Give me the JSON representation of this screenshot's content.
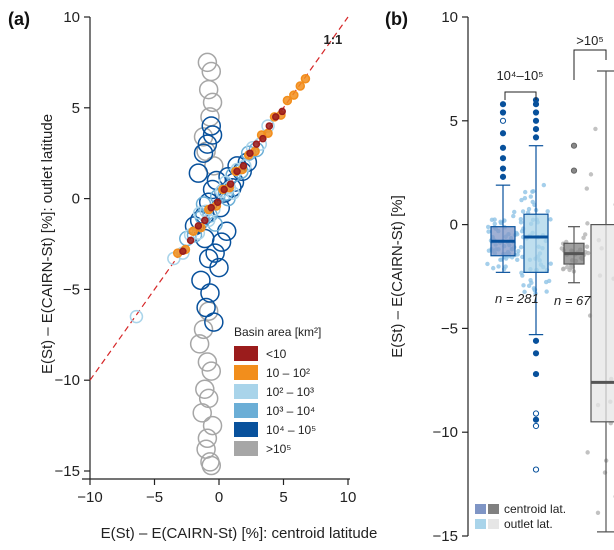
{
  "chart_data": [
    {
      "panel_label": "(a)",
      "type": "scatter",
      "xlabel": "E(St) – E(CAIRN-St) [%]: centroid latitude",
      "ylabel": "E(St) – E(CAIRN-St) [%]: outlet latitude",
      "xlim": [
        -10,
        10
      ],
      "ylim": [
        -15,
        10
      ],
      "x_ticks": [
        -10,
        -5,
        0,
        5,
        10
      ],
      "y_ticks": [
        -15,
        -10,
        -5,
        0,
        5,
        10
      ],
      "x_tick_labels": [
        "−10",
        "−5",
        "0",
        "5",
        "10"
      ],
      "y_tick_labels": [
        "−15",
        "−10",
        "−5",
        "0",
        "5",
        "10"
      ],
      "reference_line": {
        "label": "1:1",
        "slope": 1,
        "intercept": 0,
        "color": "#d62728"
      },
      "legend": {
        "title": "Basin area [km²]",
        "placement": "lower-right",
        "entries": [
          {
            "label": "<10",
            "color": "#9b1c1c"
          },
          {
            "label": "10 – 10²",
            "color": "#f28e1c"
          },
          {
            "label": "10² – 10³",
            "color": "#a9d4ea"
          },
          {
            "label": "10³ – 10⁴",
            "color": "#6baed6"
          },
          {
            "label": "10⁴ – 10⁵",
            "color": "#08519c"
          },
          {
            "label": ">10⁵",
            "color": "#a6a6a6"
          }
        ]
      },
      "series": [
        {
          "name": "<10",
          "color": "#9b1c1c",
          "x": [
            -2.8,
            -2.2,
            -1.6,
            -1.1,
            -0.6,
            -0.1,
            0.4,
            0.9,
            1.4,
            1.9,
            2.4,
            2.9,
            3.4,
            3.9,
            4.4,
            4.9
          ],
          "y": [
            -2.9,
            -2.3,
            -1.5,
            -1.2,
            -0.5,
            -0.2,
            0.5,
            0.8,
            1.5,
            1.8,
            2.5,
            3.0,
            3.3,
            4.0,
            4.5,
            4.8
          ]
        },
        {
          "name": "10 – 10²",
          "color": "#f28e1c",
          "x": [
            -3.2,
            -2.6,
            -2.0,
            -1.4,
            -0.8,
            -0.2,
            0.3,
            0.8,
            1.3,
            1.8,
            2.3,
            2.8,
            3.3,
            3.8,
            4.3,
            4.8,
            5.3,
            5.8,
            6.3,
            6.7
          ],
          "y": [
            -3.0,
            -2.8,
            -1.8,
            -1.6,
            -0.6,
            -0.4,
            0.5,
            0.6,
            1.5,
            1.6,
            2.4,
            2.6,
            3.5,
            3.6,
            4.5,
            4.6,
            5.4,
            5.7,
            6.2,
            6.6
          ]
        },
        {
          "name": "10² – 10³",
          "color": "#a9d4ea",
          "x": [
            -6.4,
            -3.5,
            -2.8,
            -2.2,
            -1.6,
            -1.0,
            -0.4,
            0.2,
            0.8,
            1.4,
            2.0,
            2.6,
            3.2,
            3.8,
            -1.5,
            -0.8,
            0.5,
            1.1
          ],
          "y": [
            -6.5,
            -3.3,
            -3.0,
            -2.0,
            -1.9,
            -0.7,
            -0.6,
            0.4,
            0.6,
            1.6,
            1.8,
            2.8,
            3.0,
            4.0,
            -0.8,
            -1.2,
            0.9,
            0.3
          ]
        },
        {
          "name": "10³ – 10⁴",
          "color": "#6baed6",
          "x": [
            -2.5,
            -1.9,
            -1.3,
            -0.7,
            -0.1,
            0.5,
            1.1,
            1.7,
            2.3,
            2.9,
            -1.2,
            -0.3,
            0.7
          ],
          "y": [
            -2.2,
            -2.0,
            -1.0,
            -0.9,
            0.1,
            0.3,
            1.3,
            1.5,
            2.5,
            2.7,
            -0.3,
            -1.4,
            0.0
          ]
        },
        {
          "name": "10⁴ – 10⁵",
          "color": "#08519c",
          "x": [
            -1.9,
            -1.5,
            -1.1,
            -0.8,
            -0.5,
            -0.2,
            0.1,
            0.4,
            0.7,
            1.0,
            1.4,
            1.8,
            2.2,
            -1.2,
            -0.9,
            -0.6,
            -0.3,
            0.0,
            -1.4,
            -0.7,
            -1.0,
            -0.4,
            0.2,
            0.6,
            1.2,
            -1.6,
            -1.1,
            -0.8,
            -0.5
          ],
          "y": [
            -1.5,
            -1.2,
            -0.9,
            -0.2,
            0.5,
            1.0,
            -0.5,
            0.3,
            1.2,
            0.6,
            1.8,
            1.5,
            2.0,
            2.5,
            3.0,
            4.0,
            -3.0,
            -3.8,
            -4.5,
            -5.2,
            -6.0,
            -6.8,
            -2.4,
            -1.8,
            0.9,
            1.4,
            -2.2,
            -3.3,
            3.5
          ]
        },
        {
          "name": ">10⁵",
          "color": "#a6a6a6",
          "x": [
            -0.9,
            -0.6,
            -0.8,
            -0.5,
            -0.7,
            -1.2,
            -1.0,
            -0.4,
            -1.5,
            -0.9,
            -0.6,
            -1.1,
            -0.8,
            -1.3,
            -0.5,
            -0.9,
            -1.0,
            -0.7,
            -0.6,
            -1.2,
            -0.8
          ],
          "y": [
            7.5,
            7.0,
            6.0,
            5.3,
            4.5,
            3.4,
            2.6,
            1.8,
            -8.0,
            -9.0,
            -9.5,
            -10.5,
            -11.0,
            -11.8,
            -12.5,
            -13.2,
            -13.8,
            -14.5,
            -14.7,
            -7.2,
            -6.2
          ]
        }
      ]
    },
    {
      "panel_label": "(b)",
      "type": "box",
      "ylabel": "E(St) – E(CAIRN-St) [%]",
      "ylim": [
        -15,
        10
      ],
      "y_ticks": [
        -15,
        -10,
        -5,
        0,
        5,
        10
      ],
      "y_tick_labels": [
        "−15",
        "−10",
        "−5",
        "0",
        "5",
        "10"
      ],
      "groups": [
        {
          "bracket_label": "10⁴–10⁵",
          "n_label": "n = 281"
        },
        {
          "bracket_label": ">10⁵",
          "n_label": "n = 67"
        }
      ],
      "boxes": [
        {
          "group": 0,
          "kind": "centroid lat.",
          "color": "#7f95c5",
          "edge": "#08519c",
          "whisker_low": -2.3,
          "q1": -1.5,
          "median": -0.8,
          "q3": -0.1,
          "whisker_high": 1.9,
          "outliers": [
            2.3,
            2.7,
            3.2,
            3.7,
            4.4,
            5.0,
            5.4,
            5.8
          ]
        },
        {
          "group": 0,
          "kind": "outlet lat.",
          "color": "#a9d4ea",
          "edge": "#08519c",
          "whisker_low": -5.3,
          "q1": -2.3,
          "median": -0.6,
          "q3": 0.5,
          "whisker_high": 3.8,
          "outliers": [
            4.2,
            4.6,
            5.0,
            5.4,
            5.8,
            6.0,
            -5.6,
            -6.2,
            -7.2,
            -9.1,
            -9.4,
            -9.7,
            -11.8
          ]
        },
        {
          "group": 1,
          "kind": "centroid lat.",
          "color": "#808080",
          "edge": "#555555",
          "whisker_low": -2.8,
          "q1": -1.9,
          "median": -1.4,
          "q3": -0.9,
          "whisker_high": -0.1,
          "outliers": [
            2.6,
            3.8
          ]
        },
        {
          "group": 1,
          "kind": "outlet lat.",
          "color": "#e6e6e6",
          "edge": "#555555",
          "whisker_low": -14.8,
          "q1": -9.5,
          "median": -7.6,
          "q3": 0.0,
          "whisker_high": 7.4,
          "outliers": []
        }
      ],
      "legend": {
        "placement": "bottom-left",
        "entries": [
          {
            "label": "centroid lat.",
            "colors": [
              "#7f95c5",
              "#808080"
            ]
          },
          {
            "label": "outlet lat.",
            "colors": [
              "#a9d4ea",
              "#e6e6e6"
            ]
          }
        ]
      }
    }
  ]
}
